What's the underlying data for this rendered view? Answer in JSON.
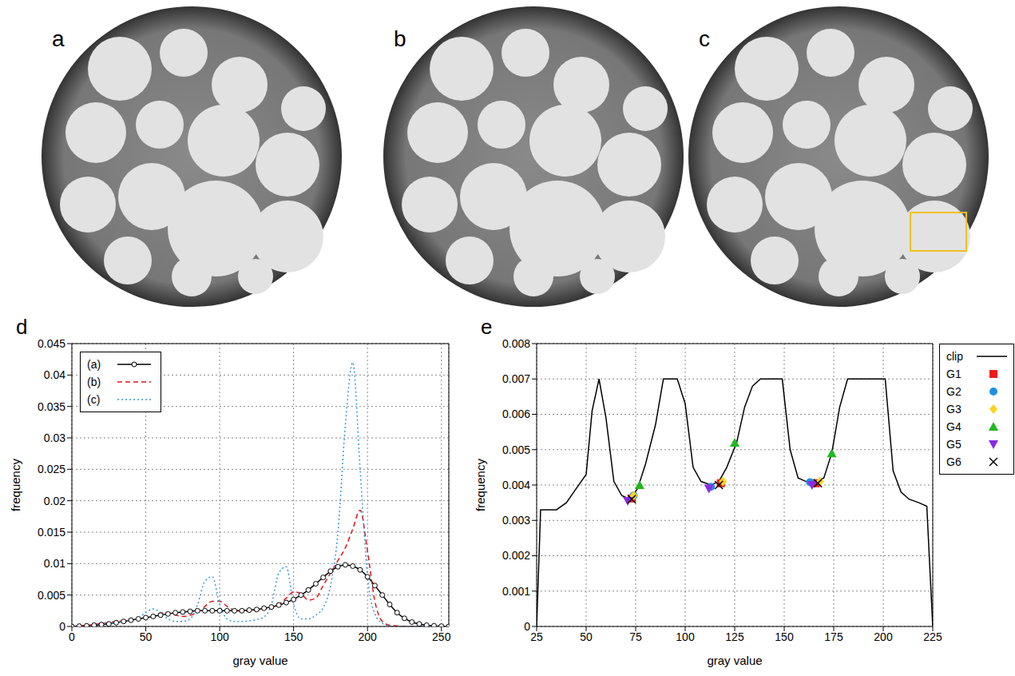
{
  "image_panels": [
    {
      "label": "a"
    },
    {
      "label": "b"
    },
    {
      "label": "c"
    }
  ],
  "chart_data": [
    {
      "panel": "d",
      "type": "line",
      "x_label": "gray value",
      "y_label": "frequency",
      "xlim": [
        0,
        255
      ],
      "xticks": [
        0,
        50,
        100,
        150,
        200,
        250
      ],
      "ylim": [
        0,
        0.045
      ],
      "yticks": [
        0,
        0.005,
        0.01,
        0.015,
        0.02,
        0.025,
        0.03,
        0.035,
        0.04,
        0.045
      ],
      "grid": true,
      "legend": "upper left",
      "x": [
        0,
        5,
        10,
        15,
        20,
        25,
        30,
        35,
        40,
        45,
        50,
        55,
        60,
        65,
        70,
        75,
        80,
        85,
        90,
        95,
        100,
        105,
        110,
        115,
        120,
        125,
        130,
        135,
        140,
        145,
        150,
        155,
        160,
        165,
        170,
        175,
        180,
        185,
        190,
        195,
        200,
        205,
        210,
        215,
        220,
        225,
        230,
        235,
        240,
        245,
        250,
        255
      ],
      "series": [
        {
          "name": "(a)",
          "color": "#000000",
          "marker": "circle",
          "line_style": "solid",
          "values": [
            0,
            5e-05,
            0.0001,
            0.0002,
            0.0003,
            0.0004,
            0.0006,
            0.0008,
            0.001,
            0.0012,
            0.0014,
            0.0016,
            0.0018,
            0.002,
            0.0022,
            0.0023,
            0.0024,
            0.0025,
            0.0025,
            0.0025,
            0.0025,
            0.0025,
            0.0025,
            0.0025,
            0.0026,
            0.0027,
            0.0029,
            0.0031,
            0.0034,
            0.0038,
            0.0043,
            0.005,
            0.0058,
            0.0068,
            0.0078,
            0.0088,
            0.0095,
            0.0098,
            0.0096,
            0.009,
            0.0079,
            0.0065,
            0.005,
            0.0035,
            0.0022,
            0.0013,
            0.0007,
            0.0004,
            0.0002,
            0.0001,
            5e-05,
            0
          ]
        },
        {
          "name": "(b)",
          "color": "#e0141b",
          "line_style": "dashed",
          "values": [
            0,
            0.0001,
            0.0002,
            0.0003,
            0.0005,
            0.0006,
            0.0008,
            0.0009,
            0.001,
            0.0012,
            0.0014,
            0.0016,
            0.0021,
            0.0022,
            0.0018,
            0.0016,
            0.0018,
            0.0022,
            0.0032,
            0.004,
            0.004,
            0.0032,
            0.0026,
            0.0024,
            0.0024,
            0.0025,
            0.0027,
            0.003,
            0.0035,
            0.0045,
            0.0055,
            0.0052,
            0.0042,
            0.0045,
            0.0065,
            0.0085,
            0.0105,
            0.0125,
            0.0155,
            0.0185,
            0.012,
            0.004,
            0.0008,
            0.0002,
            0.0001,
            0,
            0,
            0,
            0,
            0,
            0,
            0
          ]
        },
        {
          "name": "(c)",
          "color": "#3a9ad9",
          "line_style": "dotted",
          "values": [
            0,
            0.0001,
            0.0002,
            0.0003,
            0.0004,
            0.0005,
            0.0006,
            0.0008,
            0.001,
            0.0014,
            0.0022,
            0.0028,
            0.0022,
            0.0012,
            0.0008,
            0.0008,
            0.0012,
            0.0035,
            0.0072,
            0.0079,
            0.0035,
            0.0012,
            0.0008,
            0.0008,
            0.0009,
            0.0011,
            0.0015,
            0.0035,
            0.0085,
            0.0095,
            0.0035,
            0.0012,
            0.0012,
            0.0018,
            0.003,
            0.0065,
            0.015,
            0.032,
            0.042,
            0.025,
            0.008,
            0.002,
            0.0005,
            0.0001,
            0,
            0,
            0,
            0,
            0,
            0,
            0,
            0
          ]
        }
      ]
    },
    {
      "panel": "e",
      "type": "line",
      "x_label": "gray value",
      "y_label": "frequency",
      "xlim": [
        25,
        225
      ],
      "xticks": [
        25,
        50,
        75,
        100,
        125,
        150,
        175,
        200,
        225
      ],
      "ylim": [
        0,
        0.008
      ],
      "yticks": [
        0,
        0.001,
        0.002,
        0.003,
        0.004,
        0.005,
        0.006,
        0.007,
        0.008
      ],
      "grid": true,
      "legend": "right",
      "series": [
        {
          "name": "clip",
          "type": "line",
          "color": "#000000",
          "line_style": "solid",
          "x": [
            25,
            27,
            35,
            40,
            45,
            50,
            53,
            56.5,
            60,
            64,
            68,
            72,
            76,
            80,
            85,
            89,
            96,
            100,
            104,
            108,
            113,
            117,
            121,
            126,
            130,
            134,
            138,
            149,
            153,
            157,
            161,
            166,
            170,
            174,
            178,
            182,
            201,
            205,
            209,
            213,
            218,
            222,
            225
          ],
          "values": [
            0,
            0.0033,
            0.0033,
            0.0035,
            0.0039,
            0.0043,
            0.0061,
            0.007,
            0.0059,
            0.0041,
            0.0037,
            0.0036,
            0.0039,
            0.0046,
            0.0057,
            0.007,
            0.007,
            0.0063,
            0.0045,
            0.0041,
            0.004,
            0.0041,
            0.0045,
            0.0052,
            0.0062,
            0.0068,
            0.007,
            0.007,
            0.005,
            0.0042,
            0.0041,
            0.0041,
            0.0042,
            0.0049,
            0.0062,
            0.007,
            0.007,
            0.0044,
            0.0038,
            0.0036,
            0.0035,
            0.0034,
            0
          ]
        },
        {
          "name": "G1",
          "type": "scatter",
          "color": "#ee1c1c",
          "marker": "square",
          "x": [
            73,
            118,
            166
          ],
          "values": [
            0.00362,
            0.00405,
            0.00405
          ]
        },
        {
          "name": "G2",
          "type": "scatter",
          "color": "#1e8fe8",
          "marker": "circle",
          "x": [
            74,
            113,
            163
          ],
          "values": [
            0.0037,
            0.00395,
            0.00408
          ]
        },
        {
          "name": "G3",
          "type": "scatter",
          "color": "#ffd21e",
          "marker": "diamond",
          "x": [
            74,
            119,
            168
          ],
          "values": [
            0.0037,
            0.0041,
            0.0041
          ]
        },
        {
          "name": "G4",
          "type": "scatter",
          "color": "#22b822",
          "marker": "triangle",
          "x": [
            77,
            125,
            174
          ],
          "values": [
            0.004,
            0.0052,
            0.0049
          ]
        },
        {
          "name": "G5",
          "type": "scatter",
          "color": "#8a2be2",
          "marker": "triangle-down",
          "x": [
            71,
            112,
            164
          ],
          "values": [
            0.00355,
            0.0039,
            0.004
          ]
        },
        {
          "name": "G6",
          "type": "scatter",
          "color": "#000000",
          "marker": "x",
          "x": [
            73,
            117,
            167
          ],
          "values": [
            0.0036,
            0.004,
            0.00405
          ]
        }
      ]
    }
  ]
}
